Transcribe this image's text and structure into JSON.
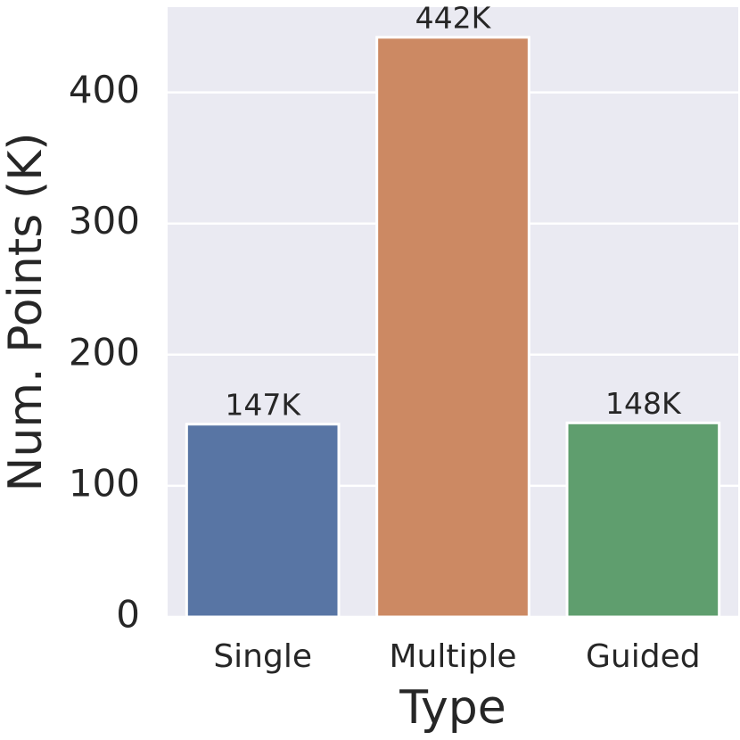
{
  "chart_data": {
    "type": "bar",
    "x_label": "Type",
    "y_label": "Num. Points (K)",
    "categories": [
      "Single",
      "Multiple",
      "Guided"
    ],
    "values": [
      147,
      442,
      148
    ],
    "value_labels": [
      "147K",
      "442K",
      "148K"
    ],
    "colors": [
      "#5875a4",
      "#cc8963",
      "#5f9e6e"
    ],
    "ylim": [
      0,
      465
    ],
    "yticks": [
      0,
      100,
      200,
      300,
      400
    ],
    "grid": true
  }
}
